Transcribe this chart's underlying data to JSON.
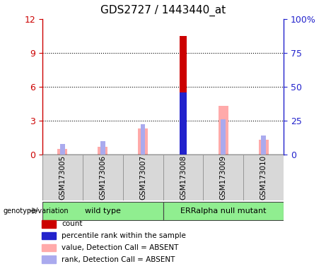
{
  "title": "GDS2727 / 1443440_at",
  "samples": [
    "GSM173005",
    "GSM173006",
    "GSM173007",
    "GSM173008",
    "GSM173009",
    "GSM173010"
  ],
  "ylim_left": [
    0,
    12
  ],
  "ylim_right": [
    0,
    100
  ],
  "yticks_left": [
    0,
    3,
    6,
    9,
    12
  ],
  "yticks_right": [
    0,
    25,
    50,
    75,
    100
  ],
  "ytick_labels_left": [
    "0",
    "3",
    "6",
    "9",
    "12"
  ],
  "ytick_labels_right": [
    "0",
    "25",
    "50",
    "75",
    "100%"
  ],
  "count_values": [
    0,
    0,
    0,
    10.5,
    0,
    0
  ],
  "percentile_rank_left": [
    0,
    0,
    0,
    5.5,
    0,
    0
  ],
  "value_absent_values": [
    0.5,
    0.7,
    2.3,
    0,
    4.3,
    1.3
  ],
  "rank_absent_values": [
    0.9,
    1.2,
    2.7,
    0,
    3.1,
    1.7
  ],
  "count_color": "#cc0000",
  "percentile_color": "#2222cc",
  "value_absent_color": "#ffaaaa",
  "rank_absent_color": "#aaaaee",
  "bg_gray": "#d8d8d8",
  "bg_green": "#90ee90",
  "left_axis_color": "#cc0000",
  "right_axis_color": "#2222cc",
  "legend_items": [
    [
      "#cc0000",
      "count"
    ],
    [
      "#2222cc",
      "percentile rank within the sample"
    ],
    [
      "#ffaaaa",
      "value, Detection Call = ABSENT"
    ],
    [
      "#aaaaee",
      "rank, Detection Call = ABSENT"
    ]
  ]
}
